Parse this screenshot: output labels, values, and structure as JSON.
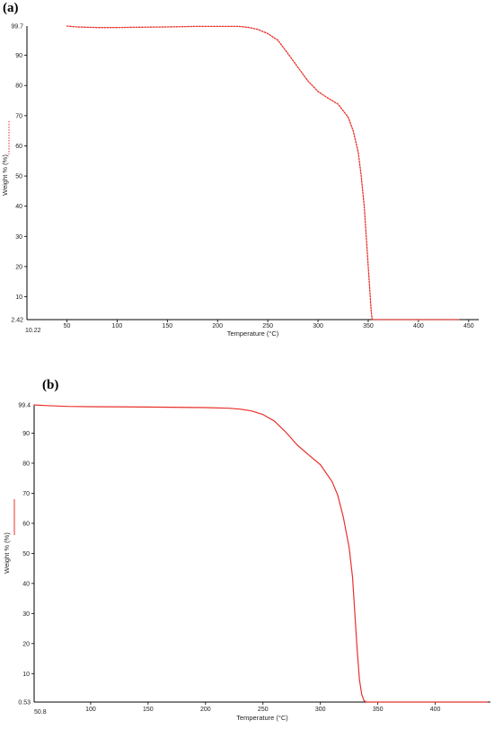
{
  "chart_data": [
    {
      "panel": "(a)",
      "type": "line",
      "xlabel": "Temperature (°C)",
      "ylabel": "Weight % (%)",
      "xlim": [
        10.22,
        460
      ],
      "ylim": [
        2.42,
        99.7
      ],
      "xticks": [
        50,
        100,
        150,
        200,
        250,
        300,
        350,
        400,
        450
      ],
      "yticks": [
        10,
        20,
        30,
        40,
        50,
        60,
        70,
        80,
        90
      ],
      "x_start_label": "10.22",
      "y_min_label": "2.42",
      "y_max_label": "99.7",
      "line_style": "dotted",
      "color": "#e8312a",
      "series": [
        {
          "x": [
            50,
            60,
            80,
            100,
            120,
            150,
            180,
            200,
            220,
            230,
            240,
            250,
            260,
            270,
            280,
            290,
            300,
            310,
            320,
            330,
            335,
            340,
            343,
            346,
            348,
            350,
            352,
            353,
            354,
            356,
            360,
            380,
            400,
            420,
            440
          ],
          "y": [
            99.7,
            99.4,
            99.2,
            99.2,
            99.3,
            99.4,
            99.6,
            99.6,
            99.6,
            99.3,
            98.6,
            97.2,
            95.0,
            90.6,
            86.0,
            81.5,
            78.0,
            75.8,
            73.8,
            69.5,
            65.0,
            58.0,
            50.0,
            40.0,
            30.0,
            20.0,
            10.0,
            5.0,
            2.42,
            2.42,
            2.42,
            2.42,
            2.42,
            2.42,
            2.42
          ]
        }
      ]
    },
    {
      "panel": "(b)",
      "type": "line",
      "xlabel": "Temperature (°C)",
      "ylabel": "Weight % (%)",
      "xlim": [
        50.8,
        448
      ],
      "ylim": [
        0.53,
        99.4
      ],
      "xticks": [
        100,
        150,
        200,
        250,
        300,
        350,
        400
      ],
      "yticks": [
        10,
        20,
        30,
        40,
        50,
        60,
        70,
        80,
        90
      ],
      "x_start_label": "50.8",
      "y_min_label": "0.53",
      "y_max_label": "99.4",
      "line_style": "solid",
      "color": "#e8312a",
      "series": [
        {
          "x": [
            50.8,
            60,
            80,
            100,
            150,
            200,
            220,
            230,
            240,
            250,
            260,
            270,
            280,
            290,
            300,
            310,
            315,
            320,
            325,
            328,
            330,
            332,
            334,
            336,
            338,
            340,
            345,
            360,
            400,
            445
          ],
          "y": [
            99.4,
            99.2,
            98.9,
            98.8,
            98.7,
            98.5,
            98.3,
            98.0,
            97.4,
            96.2,
            94.0,
            90.3,
            86.0,
            82.7,
            79.5,
            74.0,
            69.5,
            62.0,
            52.0,
            42.0,
            30.0,
            18.0,
            8.0,
            3.0,
            1.0,
            0.53,
            0.53,
            0.53,
            0.53,
            0.53
          ]
        }
      ]
    }
  ]
}
